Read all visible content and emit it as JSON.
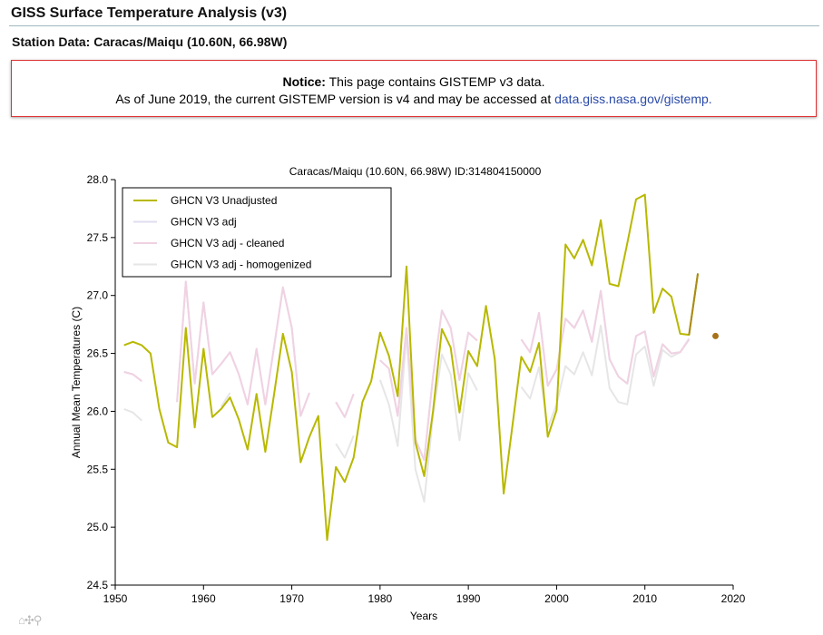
{
  "page": {
    "title": "GISS Surface Temperature Analysis (v3)",
    "station": "Station Data: Caracas/Maiqu (10.60N, 66.98W)"
  },
  "notice": {
    "label": "Notice:",
    "line1": "This page contains GISTEMP v3 data.",
    "line2": "As of June 2019, the current GISTEMP version is v4 and may be accessed at",
    "link_text": "data.giss.nasa.gov/gistemp."
  },
  "toolbar": {
    "glyphs": "⌂✣⚲"
  },
  "chart_data": {
    "type": "line",
    "title": "Caracas/Maiqu (10.60N, 66.98W) ID:314804150000",
    "xlabel": "Years",
    "ylabel": "Annual Mean Temperatures (C)",
    "xlim": [
      1950,
      2020
    ],
    "ylim": [
      24.5,
      28.0
    ],
    "xticks": [
      1950,
      1960,
      1970,
      1980,
      1990,
      2000,
      2010,
      2020
    ],
    "yticks": [
      24.5,
      25.0,
      25.5,
      26.0,
      26.5,
      27.0,
      27.5,
      28.0
    ],
    "legend": "top-left",
    "series": [
      {
        "name": "GHCN V3 Unadjusted",
        "color": "#b8b800",
        "x": [
          1951,
          1952,
          1953,
          1954,
          1955,
          1956,
          1957,
          1958,
          1959,
          1960,
          1961,
          1962,
          1963,
          1964,
          1965,
          1966,
          1967,
          1968,
          1969,
          1970,
          1971,
          1972,
          1973,
          1974,
          1975,
          1976,
          1977,
          1978,
          1979,
          1980,
          1981,
          1982,
          1983,
          1984,
          1985,
          1986,
          1987,
          1988,
          1989,
          1990,
          1991,
          1992,
          1993,
          1994,
          1995,
          1996,
          1997,
          1998,
          1999,
          2000,
          2001,
          2002,
          2003,
          2004,
          2005,
          2006,
          2007,
          2008,
          2009,
          2010,
          2011,
          2012,
          2013,
          2014,
          2015,
          2016
        ],
        "y": [
          26.57,
          26.6,
          26.57,
          26.5,
          26.02,
          25.73,
          25.69,
          26.72,
          25.86,
          26.54,
          25.95,
          26.02,
          26.12,
          25.93,
          25.67,
          26.15,
          25.65,
          26.15,
          26.67,
          26.34,
          25.56,
          25.78,
          25.96,
          24.89,
          25.52,
          25.39,
          25.6,
          26.08,
          26.26,
          26.68,
          26.48,
          26.13,
          27.25,
          25.73,
          25.44,
          26.0,
          26.71,
          26.55,
          25.99,
          26.52,
          26.39,
          26.91,
          26.45,
          25.29,
          25.88,
          26.47,
          26.34,
          26.59,
          25.78,
          26.01,
          27.44,
          27.32,
          27.48,
          27.26,
          27.65,
          27.1,
          27.08,
          27.45,
          27.83,
          27.87,
          26.85,
          27.06,
          26.99,
          26.67,
          26.66,
          27.19
        ]
      },
      {
        "name": "GHCN V3 adj",
        "color": "#e2dcf0",
        "x": [
          1951,
          1952,
          1953,
          1954,
          1955,
          1956,
          1957,
          1958,
          1959,
          1960,
          1961,
          1962,
          1963,
          1964,
          1965,
          1966,
          1967,
          1968,
          1969,
          1970,
          1971,
          1972,
          1973,
          1974,
          1975,
          1976,
          1977,
          1978,
          1979,
          1980,
          1981,
          1982,
          1983,
          1984,
          1985,
          1986,
          1987,
          1988,
          1989,
          1990,
          1991,
          1992,
          1993,
          1994,
          1995,
          1996,
          1997,
          1998,
          1999,
          2000,
          2001,
          2002,
          2003,
          2004,
          2005,
          2006,
          2007,
          2008,
          2009,
          2010,
          2011,
          2012,
          2013,
          2014,
          2015,
          2016
        ],
        "y": [
          26.34,
          26.32,
          26.26,
          null,
          null,
          null,
          26.08,
          27.12,
          26.24,
          26.94,
          26.32,
          26.41,
          26.51,
          26.32,
          26.06,
          26.54,
          26.06,
          26.56,
          27.07,
          26.72,
          25.96,
          26.16,
          null,
          null,
          26.08,
          25.95,
          26.15,
          null,
          null,
          26.44,
          26.37,
          25.96,
          26.72,
          25.76,
          25.58,
          26.3,
          26.87,
          26.72,
          26.27,
          26.68,
          26.61,
          null,
          null,
          null,
          null,
          26.62,
          26.51,
          26.85,
          26.22,
          26.36,
          26.8,
          26.72,
          26.87,
          26.6,
          27.04,
          26.45,
          26.3,
          26.24,
          26.65,
          26.69,
          26.3,
          26.58,
          26.5,
          26.51,
          26.62,
          null
        ]
      },
      {
        "name": "GHCN V3 adj - cleaned",
        "color": "#f0d2e2",
        "x": [
          1951,
          1952,
          1953,
          1954,
          1955,
          1956,
          1957,
          1958,
          1959,
          1960,
          1961,
          1962,
          1963,
          1964,
          1965,
          1966,
          1967,
          1968,
          1969,
          1970,
          1971,
          1972,
          1973,
          1974,
          1975,
          1976,
          1977,
          1978,
          1979,
          1980,
          1981,
          1982,
          1983,
          1984,
          1985,
          1986,
          1987,
          1988,
          1989,
          1990,
          1991,
          1992,
          1993,
          1994,
          1995,
          1996,
          1997,
          1998,
          1999,
          2000,
          2001,
          2002,
          2003,
          2004,
          2005,
          2006,
          2007,
          2008,
          2009,
          2010,
          2011,
          2012,
          2013,
          2014,
          2015,
          2016
        ],
        "y": [
          26.34,
          26.32,
          26.26,
          null,
          null,
          null,
          26.08,
          27.12,
          26.24,
          26.94,
          26.32,
          26.41,
          26.51,
          26.32,
          26.06,
          26.54,
          26.06,
          26.56,
          27.07,
          26.72,
          25.96,
          26.16,
          null,
          null,
          26.08,
          25.95,
          26.15,
          null,
          null,
          26.44,
          26.37,
          25.96,
          26.72,
          25.76,
          25.58,
          26.3,
          26.87,
          26.72,
          26.27,
          26.68,
          26.61,
          null,
          null,
          null,
          null,
          26.62,
          26.51,
          26.85,
          26.22,
          26.36,
          26.8,
          26.72,
          26.87,
          26.6,
          27.04,
          26.45,
          26.3,
          26.24,
          26.65,
          26.69,
          26.3,
          26.58,
          26.5,
          26.51,
          26.62,
          null
        ]
      },
      {
        "name": "GHCN V3 adj - homogenized",
        "color": "#e6e6e6",
        "x": [
          1951,
          1952,
          1953,
          1954,
          1955,
          1956,
          1957,
          1958,
          1959,
          1960,
          1961,
          1962,
          1963,
          1964,
          1965,
          1966,
          1967,
          1968,
          1969,
          1970,
          1971,
          1972,
          1973,
          1974,
          1975,
          1976,
          1977,
          1978,
          1979,
          1980,
          1981,
          1982,
          1983,
          1984,
          1985,
          1986,
          1987,
          1988,
          1989,
          1990,
          1991,
          1992,
          1993,
          1994,
          1995,
          1996,
          1997,
          1998,
          1999,
          2000,
          2001,
          2002,
          2003,
          2004,
          2005,
          2006,
          2007,
          2008,
          2009,
          2010,
          2011,
          2012,
          2013,
          2014,
          2015,
          2016
        ],
        "y": [
          26.02,
          25.99,
          25.92,
          null,
          null,
          null,
          null,
          null,
          null,
          null,
          null,
          26.04,
          26.16,
          null,
          null,
          null,
          null,
          null,
          null,
          null,
          null,
          null,
          null,
          null,
          25.72,
          25.6,
          25.79,
          null,
          null,
          26.27,
          26.06,
          25.7,
          26.67,
          25.5,
          25.22,
          25.96,
          26.49,
          26.32,
          25.75,
          26.33,
          26.18,
          null,
          null,
          null,
          null,
          26.21,
          26.11,
          26.38,
          25.86,
          26.06,
          26.39,
          26.32,
          26.51,
          26.31,
          26.74,
          26.2,
          26.08,
          26.06,
          26.49,
          26.56,
          26.22,
          26.53,
          26.47,
          26.51,
          26.63,
          null
        ]
      }
    ],
    "tail_segment": {
      "color": "#aa8a1a",
      "x": [
        2015,
        2016
      ],
      "y": [
        26.66,
        27.19
      ]
    },
    "extra_point": {
      "color": "#a6731a",
      "x": 2018,
      "y": 26.65
    }
  }
}
